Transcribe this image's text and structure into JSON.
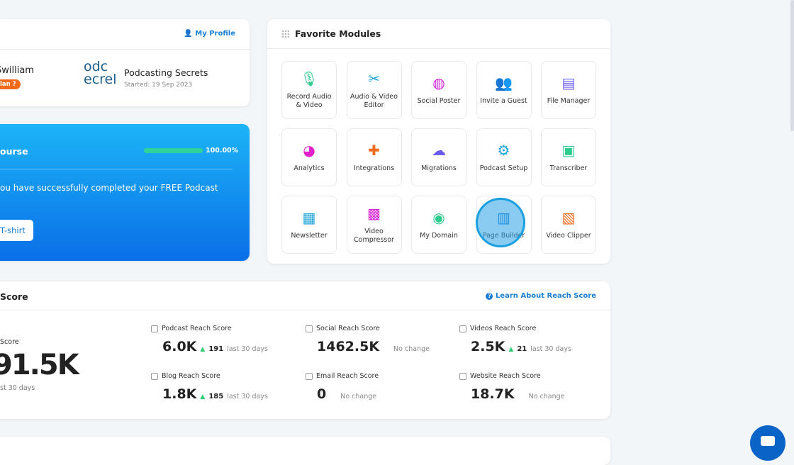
{
  "profile": {
    "my_profile": "My Profile",
    "user_name": "Swilliam",
    "plan_badge": "lan",
    "podcast_logo": "podcast secrets",
    "podcast_title": "Podcasting Secrets",
    "podcast_started": "Started: 19 Sep 2023"
  },
  "course": {
    "title": "ourse",
    "progress_percent": 100,
    "progress_label": "100.00%",
    "message": "ou have successfully completed your FREE Podcast",
    "button": "T-shirt"
  },
  "modules": {
    "title": "Favorite Modules",
    "items": [
      {
        "label": "Record Audio & Video",
        "icon": "microphone-icon",
        "color": "#2ecc8f"
      },
      {
        "label": "Audio & Video Editor",
        "icon": "editor-icon",
        "color": "#1aa3d9"
      },
      {
        "label": "Social Poster",
        "icon": "globe-share-icon",
        "color": "#d61fd6"
      },
      {
        "label": "Invite a Guest",
        "icon": "add-guest-icon",
        "color": "#f26b1d"
      },
      {
        "label": "File Manager",
        "icon": "folder-file-icon",
        "color": "#6b5cf0"
      },
      {
        "label": "Analytics",
        "icon": "pie-chart-icon",
        "color": "#e020c8"
      },
      {
        "label": "Integrations",
        "icon": "puzzle-icon",
        "color": "#f26b1d"
      },
      {
        "label": "Migrations",
        "icon": "cloud-sync-icon",
        "color": "#6b5cf0"
      },
      {
        "label": "Podcast Setup",
        "icon": "gear-icon",
        "color": "#1aa3d9"
      },
      {
        "label": "Transcriber",
        "icon": "notebook-pen-icon",
        "color": "#2ecc8f"
      },
      {
        "label": "Newsletter",
        "icon": "newspaper-icon",
        "color": "#1aa3d9"
      },
      {
        "label": "Video Compressor",
        "icon": "film-icon",
        "color": "#d61fd6"
      },
      {
        "label": "My Domain",
        "icon": "globe-icon",
        "color": "#2ecc8f"
      },
      {
        "label": "Page Builder",
        "icon": "layout-icon",
        "color": "#1a7ed6"
      },
      {
        "label": "Video Clipper",
        "icon": "video-stack-icon",
        "color": "#f26b1d"
      }
    ]
  },
  "reach": {
    "title": "Score",
    "learn": "Learn About Reach Score",
    "total_label": "Score",
    "total_value": "91.5K",
    "total_sub": "st 30 days",
    "items": [
      {
        "label": "Podcast Reach Score",
        "value": "6.0K",
        "delta": "191",
        "note": "last 30 days",
        "icon": "microphone-icon"
      },
      {
        "label": "Social Reach Score",
        "value": "1462.5K",
        "delta": "",
        "note": "No change",
        "icon": "chat-icon"
      },
      {
        "label": "Videos Reach Score",
        "value": "2.5K",
        "delta": "21",
        "note": "last 30 days",
        "icon": "video-icon"
      },
      {
        "label": "Blog Reach Score",
        "value": "1.8K",
        "delta": "185",
        "note": "last 30 days",
        "icon": "globe-icon"
      },
      {
        "label": "Email Reach Score",
        "value": "0",
        "delta": "",
        "note": "No change",
        "icon": "inbox-icon"
      },
      {
        "label": "Website Reach Score",
        "value": "18.7K",
        "delta": "",
        "note": "No change",
        "icon": "browser-icon"
      }
    ]
  }
}
